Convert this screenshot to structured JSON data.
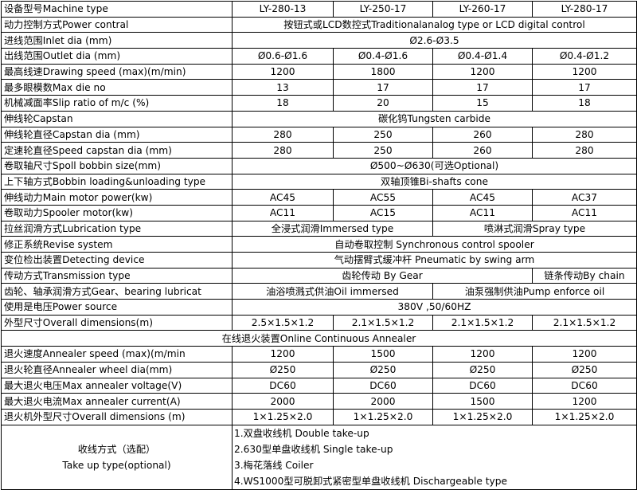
{
  "table": {
    "rows": [
      {
        "label": "设备型号Machine type",
        "cells": [
          {
            "v": "LY-280-13",
            "span": 1
          },
          {
            "v": "LY-250-17",
            "span": 1
          },
          {
            "v": "LY-260-17",
            "span": 1
          },
          {
            "v": "LY-280-17",
            "span": 1
          }
        ]
      },
      {
        "label": "动力控制方式Power contral",
        "cells": [
          {
            "v": "按钮式或LCD数控式Traditionalanalog type or LCD digital control",
            "span": 4
          }
        ]
      },
      {
        "label": "进线范围Inlet dia (mm)",
        "cells": [
          {
            "v": "Ø2.6-Ø3.5",
            "span": 4
          }
        ]
      },
      {
        "label": "出线范围Outlet dia (mm)",
        "cells": [
          {
            "v": "Ø0.6-Ø1.6",
            "span": 1
          },
          {
            "v": "Ø0.4-Ø1.6",
            "span": 1
          },
          {
            "v": "Ø0.4-Ø1.4",
            "span": 1
          },
          {
            "v": "Ø0.4-Ø1.2",
            "span": 1
          }
        ]
      },
      {
        "label": "最高线速Drawing speed (max)(m/min)",
        "cells": [
          {
            "v": "1200",
            "span": 1
          },
          {
            "v": "1800",
            "span": 1
          },
          {
            "v": "1200",
            "span": 1
          },
          {
            "v": "1200",
            "span": 1
          }
        ]
      },
      {
        "label": "最多眼模数Max die no",
        "cells": [
          {
            "v": "13",
            "span": 1
          },
          {
            "v": "17",
            "span": 1
          },
          {
            "v": "17",
            "span": 1
          },
          {
            "v": "17",
            "span": 1
          }
        ]
      },
      {
        "label": "机械减面率Slip ratio of m/c (%)",
        "cells": [
          {
            "v": "18",
            "span": 1
          },
          {
            "v": "20",
            "span": 1
          },
          {
            "v": "15",
            "span": 1
          },
          {
            "v": "18",
            "span": 1
          }
        ]
      },
      {
        "label": "伸线轮Capstan",
        "cells": [
          {
            "v": "碳化钨Tungsten carbide",
            "span": 4
          }
        ]
      },
      {
        "label": "伸线轮直径Capstan dia (mm)",
        "cells": [
          {
            "v": "280",
            "span": 1
          },
          {
            "v": "250",
            "span": 1
          },
          {
            "v": "260",
            "span": 1
          },
          {
            "v": "280",
            "span": 1
          }
        ]
      },
      {
        "label": "定速轮直径Speed capstan dia (mm)",
        "cells": [
          {
            "v": "280",
            "span": 1
          },
          {
            "v": "250",
            "span": 1
          },
          {
            "v": "260",
            "span": 1
          },
          {
            "v": "280",
            "span": 1
          }
        ]
      },
      {
        "label": "卷取轴尺寸Spoll bobbin size(mm)",
        "cells": [
          {
            "v": "Ø500~Ø630(可选Optional)",
            "span": 4
          }
        ]
      },
      {
        "label": "上下轴方式Bobbin loading&unloading type",
        "cells": [
          {
            "v": "双轴顶锥Bi-shafts cone",
            "span": 4
          }
        ]
      },
      {
        "label": "伸线动力Main motor power(kw)",
        "cells": [
          {
            "v": "AC45",
            "span": 1
          },
          {
            "v": "AC55",
            "span": 1
          },
          {
            "v": "AC45",
            "span": 1
          },
          {
            "v": "AC37",
            "span": 1
          }
        ]
      },
      {
        "label": "卷取动力Spooler motor(kw)",
        "cells": [
          {
            "v": "AC11",
            "span": 1
          },
          {
            "v": "AC15",
            "span": 1
          },
          {
            "v": "AC11",
            "span": 1
          },
          {
            "v": "AC11",
            "span": 1
          }
        ]
      },
      {
        "label": "拉丝润滑方式Lubrication type",
        "cells": [
          {
            "v": "全浸式润滑Immersed type",
            "span": 2
          },
          {
            "v": "喷淋式润滑Spray type",
            "span": 2
          }
        ]
      },
      {
        "label": "修正系统Revise system",
        "cells": [
          {
            "v": "自动卷取控制 Synchronous control spooler",
            "span": 4
          }
        ]
      },
      {
        "label": "变位检出装置Detecting device",
        "cells": [
          {
            "v": "气动摆臂式缓冲杆 Pneumatic by swing arm",
            "span": 4
          }
        ]
      },
      {
        "label": "传动方式Transmission type",
        "cells": [
          {
            "v": "齿轮传动 By Gear",
            "span": 3
          },
          {
            "v": "链条传动By chain",
            "span": 1
          }
        ]
      },
      {
        "label": "齿轮、轴承润滑方式Gear、bearing lubricat",
        "cells": [
          {
            "v": "油浴喷溅式供油Oil immersed",
            "span": 2
          },
          {
            "v": "油泵强制供油Pump enforce oil",
            "span": 2
          }
        ]
      },
      {
        "label": "使用是电压Power source",
        "cells": [
          {
            "v": "380V ,50/60HZ",
            "span": 4
          }
        ]
      },
      {
        "label": "外型尺寸Overall dimensions(m)",
        "cells": [
          {
            "v": "2.5×1.5×1.2",
            "span": 1
          },
          {
            "v": "2.1×1.5×1.2",
            "span": 1
          },
          {
            "v": "2.1×1.5×1.2",
            "span": 1
          },
          {
            "v": "2.1×1.5×1.2",
            "span": 1
          }
        ]
      },
      {
        "label": "",
        "full": "在线退火装置Online Continuous Annealer",
        "cells": []
      },
      {
        "label": "退火速度Annealer speed (max)(m/min",
        "cells": [
          {
            "v": "1200",
            "span": 1
          },
          {
            "v": "1500",
            "span": 1
          },
          {
            "v": "1200",
            "span": 1
          },
          {
            "v": "1200",
            "span": 1
          }
        ]
      },
      {
        "label": "退火轮直径Annealer wheel dia(mm)",
        "cells": [
          {
            "v": "Ø250",
            "span": 1
          },
          {
            "v": "Ø250",
            "span": 1
          },
          {
            "v": "Ø250",
            "span": 1
          },
          {
            "v": "Ø250",
            "span": 1
          }
        ]
      },
      {
        "label": "最大退火电压Max annealer voltage(V)",
        "cells": [
          {
            "v": "DC60",
            "span": 1
          },
          {
            "v": "DC60",
            "span": 1
          },
          {
            "v": "DC60",
            "span": 1
          },
          {
            "v": "DC60",
            "span": 1
          }
        ]
      },
      {
        "label": "最大退火电流Max annealer current(A)",
        "cells": [
          {
            "v": "2000",
            "span": 1
          },
          {
            "v": "2000",
            "span": 1
          },
          {
            "v": "1500",
            "span": 1
          },
          {
            "v": "1200",
            "span": 1
          }
        ]
      },
      {
        "label": "退火机外型尺寸Overall dimensions (m)",
        "cells": [
          {
            "v": "1×1.25×2.0",
            "span": 1
          },
          {
            "v": "1×1.25×2.0",
            "span": 1
          },
          {
            "v": "1×1.25×2.0",
            "span": 1
          },
          {
            "v": "1×1.25×2.0",
            "span": 1
          }
        ]
      }
    ],
    "take_up": {
      "label_cn": "收线方式（选配）",
      "label_en": "Take up type(optional)",
      "options": [
        "1.双盘收线机    Double take-up",
        "2.630型单盘收线机    Single take-up",
        "3.梅花落线    Coiler",
        "4.WS1000型可脱卸式紧密型单盘收线机    Dischargeable type"
      ]
    }
  }
}
